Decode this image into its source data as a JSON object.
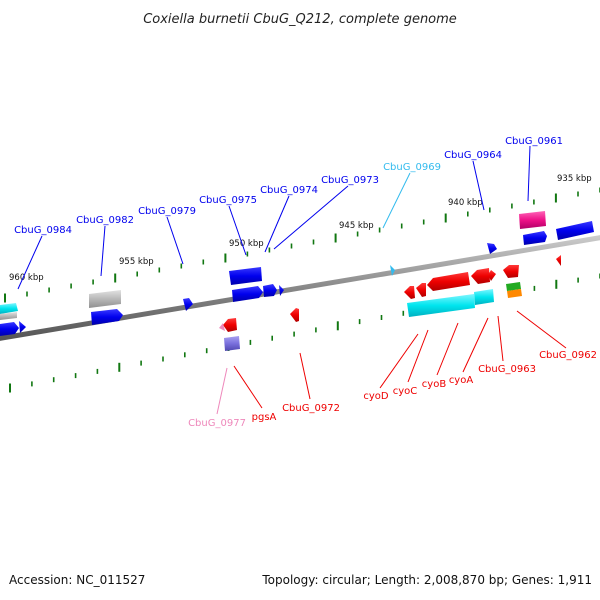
{
  "title": "Coxiella burnetii CbuG_Q212, complete genome",
  "footer": {
    "accession": "Accession: NC_011527",
    "topology": "Topology: circular; Length: 2,008,870 bp; Genes: 1,911"
  },
  "colors": {
    "forward": "#0000ee",
    "reverse": "#ee0000",
    "cyan": "#00e5ee",
    "light_blue": "#33bbee",
    "pink": "#ee88bb",
    "magenta": "#ee1188",
    "violet": "#7a70dd",
    "gray": "#b8b8b8",
    "green": "#22aa22",
    "orange": "#ff8800",
    "tick": "#117711",
    "backbone": "#888888"
  },
  "ticks": [
    {
      "label": "935 kbp"
    },
    {
      "label": "940 kbp"
    },
    {
      "label": "945 kbp"
    },
    {
      "label": "950 kbp"
    },
    {
      "label": "955 kbp"
    },
    {
      "label": "960 kbp"
    }
  ],
  "genes": [
    {
      "label": "CbuG_0961",
      "strand": "forward"
    },
    {
      "label": "CbuG_0964",
      "strand": "forward"
    },
    {
      "label": "CbuG_0969",
      "strand": "forward"
    },
    {
      "label": "CbuG_0973",
      "strand": "forward"
    },
    {
      "label": "CbuG_0974",
      "strand": "forward"
    },
    {
      "label": "CbuG_0975",
      "strand": "forward"
    },
    {
      "label": "CbuG_0979",
      "strand": "forward"
    },
    {
      "label": "CbuG_0982",
      "strand": "forward"
    },
    {
      "label": "CbuG_0984",
      "strand": "forward"
    },
    {
      "label": "CbuG_0962",
      "strand": "reverse"
    },
    {
      "label": "CbuG_0963",
      "strand": "reverse"
    },
    {
      "label": "cyoA",
      "strand": "reverse"
    },
    {
      "label": "cyoB",
      "strand": "reverse"
    },
    {
      "label": "cyoC",
      "strand": "reverse"
    },
    {
      "label": "cyoD",
      "strand": "reverse"
    },
    {
      "label": "CbuG_0972",
      "strand": "reverse"
    },
    {
      "label": "pgsA",
      "strand": "reverse"
    },
    {
      "label": "CbuG_0977",
      "strand": "reverse"
    }
  ]
}
